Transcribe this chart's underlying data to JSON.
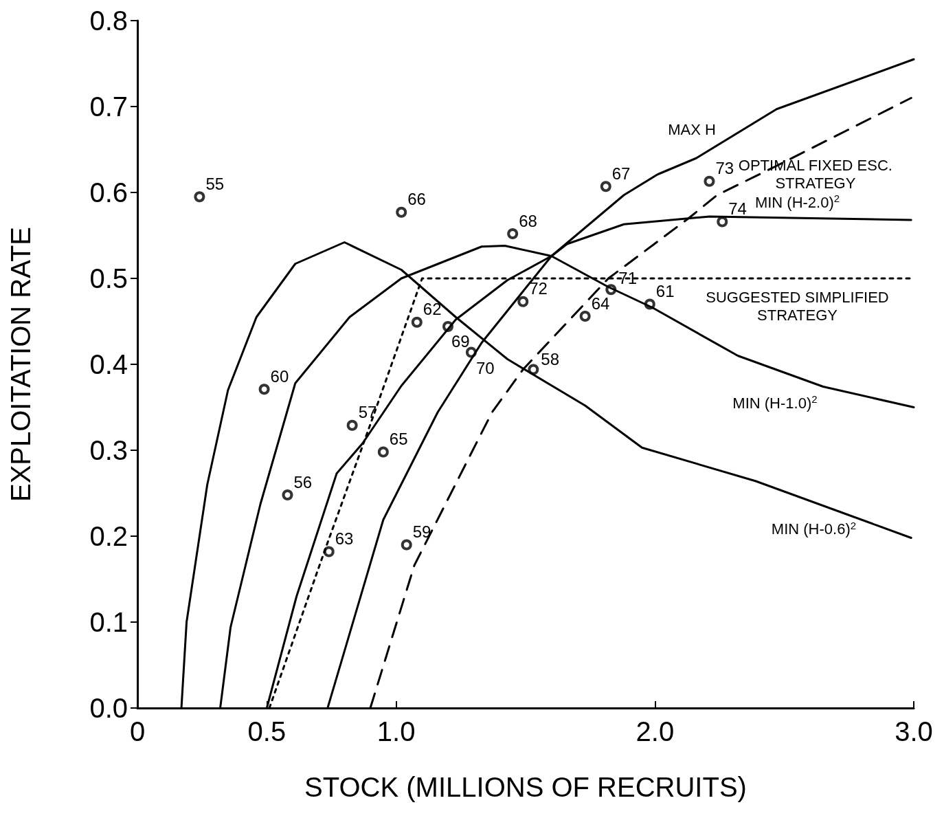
{
  "chart_data": {
    "type": "line",
    "xlabel": "STOCK (MILLIONS OF RECRUITS)",
    "ylabel": "EXPLOITATION RATE",
    "xlim": [
      0,
      3
    ],
    "ylim": [
      0,
      0.8
    ],
    "xticks": [
      {
        "value": 0,
        "label": "0"
      },
      0.5,
      {
        "value": 1,
        "label": "1.0"
      },
      {
        "value": 2,
        "label": "2.0"
      },
      {
        "value": 3,
        "label": "3.0"
      }
    ],
    "yticks": [
      {
        "value": 0,
        "label": "0.0"
      },
      0.1,
      0.2,
      0.3,
      0.4,
      0.5,
      0.6,
      0.7,
      0.8
    ],
    "series": [
      {
        "color": "#000000",
        "line_style": "solid",
        "marker": "none",
        "x": [
          0.17,
          0.19,
          0.27,
          0.35,
          0.46,
          0.61,
          0.8,
          1.02,
          1.23,
          1.43,
          1.73,
          1.95,
          2.39,
          2.99
        ],
        "values": [
          0,
          0.1,
          0.26,
          0.37,
          0.455,
          0.517,
          0.542,
          0.51,
          0.455,
          0.406,
          0.352,
          0.303,
          0.264,
          0.198
        ]
      },
      {
        "color": "#000000",
        "line_style": "solid",
        "marker": "none",
        "x": [
          0.32,
          0.36,
          0.475,
          0.61,
          0.82,
          1.02,
          1.33,
          1.42,
          1.6,
          1.82,
          1.99,
          2.32,
          2.65,
          3.0
        ],
        "values": [
          0,
          0.094,
          0.237,
          0.378,
          0.455,
          0.5,
          0.537,
          0.538,
          0.526,
          0.49,
          0.466,
          0.41,
          0.374,
          0.35
        ]
      },
      {
        "color": "#000000",
        "line_style": "solid",
        "marker": "none",
        "x": [
          0.5,
          0.615,
          0.77,
          0.87,
          1.02,
          1.23,
          1.43,
          1.6,
          1.66,
          1.88,
          2.21,
          2.99
        ],
        "values": [
          0,
          0.13,
          0.273,
          0.308,
          0.375,
          0.452,
          0.498,
          0.526,
          0.54,
          0.563,
          0.572,
          0.568
        ]
      },
      {
        "color": "#000000",
        "line_style": "solid",
        "marker": "none",
        "x": [
          0.735,
          0.95,
          1.16,
          1.33,
          1.6,
          1.88,
          2.01,
          2.16,
          2.47,
          3.0
        ],
        "values": [
          0,
          0.219,
          0.344,
          0.425,
          0.526,
          0.597,
          0.621,
          0.64,
          0.697,
          0.755
        ]
      },
      {
        "color": "#000000",
        "line_style": "dashed",
        "marker": "none",
        "x": [
          0.9,
          1.07,
          1.37,
          1.49,
          1.82,
          2.13,
          2.24,
          2.47,
          2.99
        ],
        "values": [
          0,
          0.166,
          0.344,
          0.394,
          0.5,
          0.57,
          0.597,
          0.631,
          0.71
        ]
      },
      {
        "color": "#000000",
        "line_style": "dotted",
        "marker": "none",
        "x": [
          0.51,
          0.72,
          0.9,
          1.1,
          3.0
        ],
        "values": [
          0,
          0.18,
          0.33,
          0.5,
          0.5
        ]
      },
      {
        "type": "scatter",
        "color": "#000000",
        "marker": "circle",
        "x": [
          0.24,
          1.02,
          1.45,
          1.81,
          2.21,
          2.26,
          0.49,
          1.08,
          1.2,
          1.29,
          1.49,
          1.53,
          1.83,
          1.98,
          1.73,
          0.83,
          0.95,
          0.58,
          0.74,
          1.04
        ],
        "values": [
          0.595,
          0.577,
          0.552,
          0.607,
          0.613,
          0.566,
          0.371,
          0.449,
          0.444,
          0.414,
          0.473,
          0.394,
          0.487,
          0.47,
          0.456,
          0.329,
          0.298,
          0.248,
          0.182,
          0.19
        ]
      }
    ],
    "annotations": [
      "MAX H",
      "OPTIMAL FIXED ESC. STRATEGY",
      "MIN (H-2.0)$^{2}$",
      "SUGGESTED SIMPLIFIED STRATEGY",
      "MIN (H-1.0)$^{2}$",
      "MIN (H-0.6)$^{2}$",
      {
        "text": "55",
        "x": 0.24,
        "y": 0.595
      },
      {
        "text": "66",
        "x": 1.02,
        "y": 0.577
      },
      {
        "text": "68",
        "x": 1.45,
        "y": 0.552
      },
      {
        "text": "67",
        "x": 1.81,
        "y": 0.607
      },
      {
        "text": "73",
        "x": 2.21,
        "y": 0.613
      },
      {
        "text": "74",
        "x": 2.26,
        "y": 0.566
      },
      {
        "text": "60",
        "x": 0.49,
        "y": 0.371
      },
      {
        "text": "62",
        "x": 1.08,
        "y": 0.449
      },
      {
        "text": "69",
        "x": 1.2,
        "y": 0.444
      },
      {
        "text": "70",
        "x": 1.29,
        "y": 0.414
      },
      {
        "text": "72",
        "x": 1.49,
        "y": 0.473
      },
      {
        "text": "58",
        "x": 1.53,
        "y": 0.394
      },
      {
        "text": "71",
        "x": 1.83,
        "y": 0.487
      },
      {
        "text": "61",
        "x": 1.98,
        "y": 0.47
      },
      {
        "text": "64",
        "x": 1.73,
        "y": 0.456
      },
      {
        "text": "57",
        "x": 0.83,
        "y": 0.329
      },
      {
        "text": "65",
        "x": 0.95,
        "y": 0.298
      },
      {
        "text": "56",
        "x": 0.58,
        "y": 0.248
      },
      {
        "text": "63",
        "x": 0.74,
        "y": 0.182
      },
      {
        "text": "59",
        "x": 1.04,
        "y": 0.19
      }
    ]
  }
}
